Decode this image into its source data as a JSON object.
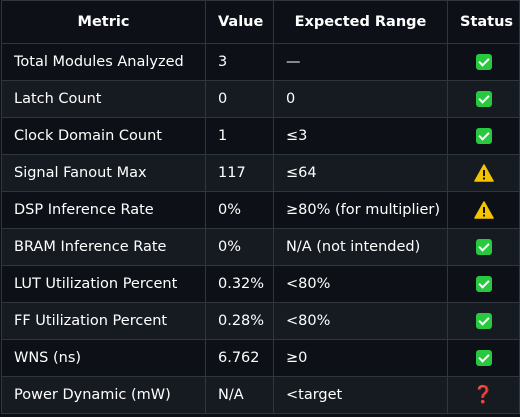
{
  "table": {
    "headers": {
      "metric": "Metric",
      "value": "Value",
      "range": "Expected Range",
      "status": "Status"
    },
    "rows": [
      {
        "metric": "Total Modules Analyzed",
        "value": "3",
        "range": "—",
        "status": "check-icon"
      },
      {
        "metric": "Latch Count",
        "value": "0",
        "range": "0",
        "status": "check-icon"
      },
      {
        "metric": "Clock Domain Count",
        "value": "1",
        "range": "≤3",
        "status": "check-icon"
      },
      {
        "metric": "Signal Fanout Max",
        "value": "117",
        "range": "≤64",
        "status": "warning-icon"
      },
      {
        "metric": "DSP Inference Rate",
        "value": "0%",
        "range": "≥80% (for multiplier)",
        "status": "warning-icon"
      },
      {
        "metric": "BRAM Inference Rate",
        "value": "0%",
        "range": "N/A (not intended)",
        "status": "check-icon"
      },
      {
        "metric": "LUT Utilization Percent",
        "value": "0.32%",
        "range": "<80%",
        "status": "check-icon"
      },
      {
        "metric": "FF Utilization Percent",
        "value": "0.28%",
        "range": "<80%",
        "status": "check-icon"
      },
      {
        "metric": "WNS (ns)",
        "value": "6.762",
        "range": "≥0",
        "status": "check-icon"
      },
      {
        "metric": "Power Dynamic (mW)",
        "value": "N/A",
        "range": "<target",
        "status": "question-icon"
      }
    ]
  },
  "colors": {
    "background": "#0d1117",
    "row_alt": "#161b22",
    "border": "#30363d",
    "ok": "#27c93f",
    "warning": "#f5c400",
    "unknown": "#e53935"
  }
}
